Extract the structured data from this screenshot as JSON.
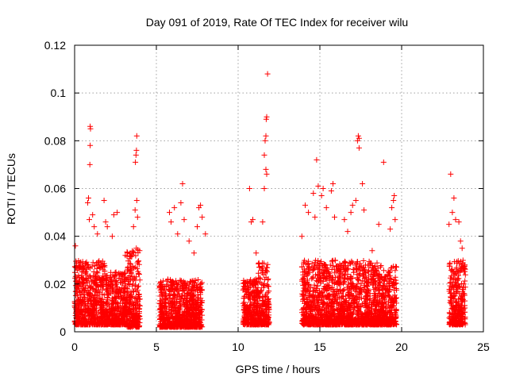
{
  "chart_data": {
    "type": "scatter",
    "title": "Day 091 of 2019, Rate Of TEC Index for receiver wilu",
    "xlabel": "GPS time / hours",
    "ylabel": "ROTI / TECUs",
    "xlim": [
      0,
      25
    ],
    "ylim": [
      0,
      0.12
    ],
    "grid": true,
    "marker": "+",
    "marker_color": "#ff0000",
    "x_ticks": [
      0,
      5,
      10,
      15,
      20,
      25
    ],
    "x_tick_labels": [
      "0",
      "5",
      "10",
      "15",
      "20",
      "25"
    ],
    "y_ticks": [
      0,
      0.02,
      0.04,
      0.06,
      0.08,
      0.1,
      0.12
    ],
    "y_tick_labels": [
      "0",
      "0.02",
      "0.04",
      "0.06",
      "0.08",
      "0.1",
      "0.12"
    ],
    "dense_clusters": [
      {
        "x_start": 0.0,
        "x_end": 1.9,
        "y_low": 0.003,
        "y_high": 0.03
      },
      {
        "x_start": 1.9,
        "x_end": 3.2,
        "y_low": 0.003,
        "y_high": 0.025
      },
      {
        "x_start": 3.2,
        "x_end": 4.0,
        "y_low": 0.002,
        "y_high": 0.035
      },
      {
        "x_start": 5.2,
        "x_end": 7.8,
        "y_low": 0.002,
        "y_high": 0.022
      },
      {
        "x_start": 10.3,
        "x_end": 11.2,
        "y_low": 0.003,
        "y_high": 0.022
      },
      {
        "x_start": 11.2,
        "x_end": 11.9,
        "y_low": 0.003,
        "y_high": 0.03
      },
      {
        "x_start": 13.9,
        "x_end": 16.2,
        "y_low": 0.003,
        "y_high": 0.03
      },
      {
        "x_start": 16.2,
        "x_end": 18.5,
        "y_low": 0.003,
        "y_high": 0.03
      },
      {
        "x_start": 18.5,
        "x_end": 19.7,
        "y_low": 0.003,
        "y_high": 0.028
      },
      {
        "x_start": 22.9,
        "x_end": 23.9,
        "y_low": 0.003,
        "y_high": 0.03
      }
    ],
    "points": [
      [
        0.05,
        0.036
      ],
      [
        0.8,
        0.054
      ],
      [
        0.85,
        0.056
      ],
      [
        0.9,
        0.047
      ],
      [
        0.95,
        0.086
      ],
      [
        0.97,
        0.085
      ],
      [
        0.95,
        0.078
      ],
      [
        0.93,
        0.07
      ],
      [
        1.1,
        0.049
      ],
      [
        1.2,
        0.044
      ],
      [
        1.4,
        0.041
      ],
      [
        1.8,
        0.055
      ],
      [
        1.9,
        0.046
      ],
      [
        2.0,
        0.044
      ],
      [
        2.4,
        0.049
      ],
      [
        2.6,
        0.05
      ],
      [
        2.3,
        0.04
      ],
      [
        3.1,
        0.032
      ],
      [
        3.6,
        0.044
      ],
      [
        3.7,
        0.051
      ],
      [
        3.8,
        0.082
      ],
      [
        3.78,
        0.076
      ],
      [
        3.75,
        0.074
      ],
      [
        3.72,
        0.071
      ],
      [
        3.8,
        0.055
      ],
      [
        3.85,
        0.048
      ],
      [
        5.8,
        0.05
      ],
      [
        5.9,
        0.046
      ],
      [
        6.1,
        0.052
      ],
      [
        6.3,
        0.041
      ],
      [
        6.5,
        0.054
      ],
      [
        6.6,
        0.062
      ],
      [
        6.7,
        0.047
      ],
      [
        7.0,
        0.038
      ],
      [
        7.3,
        0.033
      ],
      [
        7.5,
        0.044
      ],
      [
        7.6,
        0.052
      ],
      [
        7.7,
        0.053
      ],
      [
        7.8,
        0.048
      ],
      [
        8.0,
        0.041
      ],
      [
        10.7,
        0.06
      ],
      [
        10.8,
        0.046
      ],
      [
        10.9,
        0.047
      ],
      [
        11.1,
        0.033
      ],
      [
        11.5,
        0.046
      ],
      [
        11.6,
        0.074
      ],
      [
        11.65,
        0.08
      ],
      [
        11.7,
        0.082
      ],
      [
        11.72,
        0.089
      ],
      [
        11.75,
        0.09
      ],
      [
        11.8,
        0.108
      ],
      [
        11.7,
        0.068
      ],
      [
        11.75,
        0.066
      ],
      [
        11.6,
        0.06
      ],
      [
        13.9,
        0.04
      ],
      [
        14.1,
        0.053
      ],
      [
        14.3,
        0.05
      ],
      [
        14.6,
        0.058
      ],
      [
        14.7,
        0.048
      ],
      [
        14.8,
        0.072
      ],
      [
        14.9,
        0.061
      ],
      [
        15.1,
        0.057
      ],
      [
        15.2,
        0.06
      ],
      [
        15.4,
        0.052
      ],
      [
        15.7,
        0.059
      ],
      [
        15.8,
        0.062
      ],
      [
        15.9,
        0.048
      ],
      [
        16.5,
        0.047
      ],
      [
        16.7,
        0.042
      ],
      [
        16.9,
        0.05
      ],
      [
        17.0,
        0.053
      ],
      [
        17.2,
        0.055
      ],
      [
        17.3,
        0.08
      ],
      [
        17.35,
        0.082
      ],
      [
        17.4,
        0.081
      ],
      [
        17.4,
        0.077
      ],
      [
        17.6,
        0.062
      ],
      [
        17.7,
        0.051
      ],
      [
        18.2,
        0.034
      ],
      [
        18.6,
        0.045
      ],
      [
        18.9,
        0.071
      ],
      [
        19.3,
        0.043
      ],
      [
        19.4,
        0.052
      ],
      [
        19.5,
        0.055
      ],
      [
        19.55,
        0.057
      ],
      [
        19.6,
        0.047
      ],
      [
        23.0,
        0.066
      ],
      [
        23.1,
        0.05
      ],
      [
        23.2,
        0.056
      ],
      [
        23.3,
        0.047
      ],
      [
        23.5,
        0.046
      ],
      [
        23.6,
        0.038
      ],
      [
        23.7,
        0.035
      ],
      [
        22.9,
        0.045
      ]
    ]
  }
}
